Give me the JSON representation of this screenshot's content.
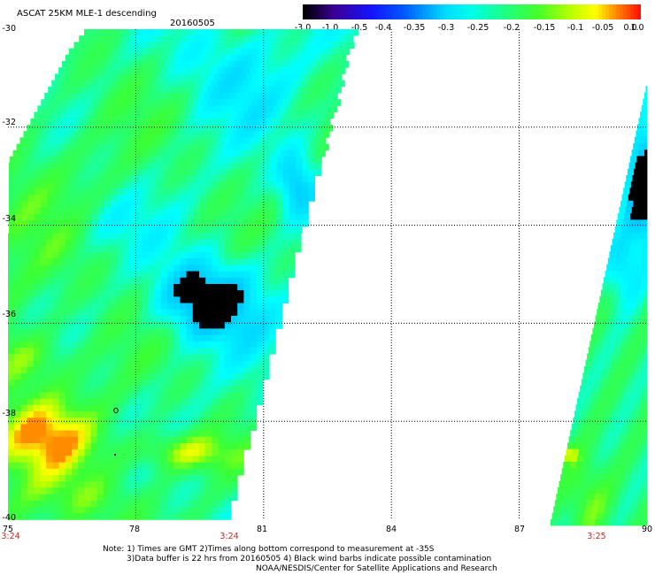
{
  "header": {
    "title": "ASCAT 25KM MLE-1 descending",
    "date": "20160505"
  },
  "colorbar": {
    "labels": [
      "-3.0",
      "-1.0",
      "-0.5",
      "-0.4",
      "-0.35",
      "-0.3",
      "-0.25",
      "-0.2",
      "-0.15",
      "-0.1",
      "-0.05",
      "0.0",
      "1.0"
    ],
    "colors": [
      "#200020",
      "#3c0090",
      "#4b00d8",
      "#0000ff",
      "#1f55ff",
      "#1aa8ff",
      "#00ffff",
      "#1fff90",
      "#33ff33",
      "#aaff00",
      "#ffff00",
      "#ff8800",
      "#ff1e00"
    ]
  },
  "axes": {
    "lat_labels": [
      "-30",
      "-32",
      "-34",
      "-36",
      "-38",
      "-40"
    ],
    "lon_labels": [
      "75",
      "78",
      "81",
      "84",
      "87",
      "90"
    ]
  },
  "time_labels": [
    "3:24",
    "3:24",
    "3:25"
  ],
  "note": {
    "line1": "Note: 1) Times are GMT 2)Times along bottom correspond to measurement at -35S",
    "line2": "3)Data buffer is 22 hrs from 20160505 4) Black wind barbs indicate possible contamination",
    "line3": "NOAA/NESDIS/Center for Satellite Applications and Research"
  }
}
